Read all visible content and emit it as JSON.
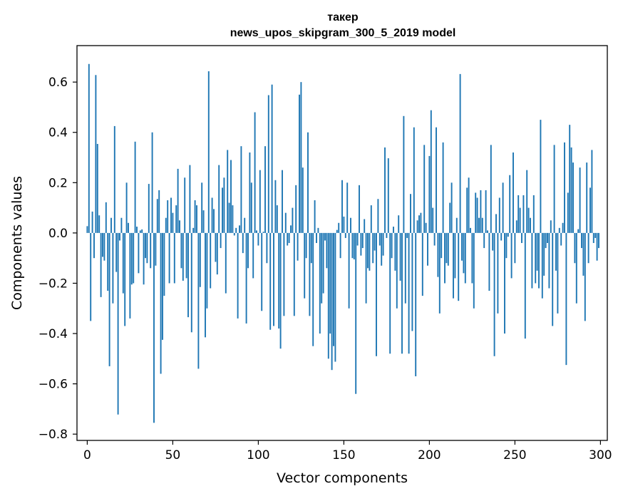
{
  "chart_data": {
    "type": "bar",
    "title": "такер",
    "subtitle": "news_upos_skipgram_300_5_2019 model",
    "xlabel": "Vector components",
    "ylabel": "Components values",
    "xlim": [
      -6,
      304
    ],
    "ylim": [
      -0.825,
      0.745
    ],
    "x_ticks": [
      0,
      50,
      100,
      150,
      200,
      250,
      300
    ],
    "x_tick_labels": [
      "0",
      "50",
      "100",
      "150",
      "200",
      "250",
      "300"
    ],
    "y_ticks": [
      -0.8,
      -0.6,
      -0.4,
      -0.2,
      0.0,
      0.2,
      0.4,
      0.6
    ],
    "y_tick_labels": [
      "−0.8",
      "−0.6",
      "−0.4",
      "−0.2",
      "0.0",
      "0.2",
      "0.4",
      "0.6"
    ],
    "bar_color": "#1f77b4",
    "grid": false,
    "x": "0..299",
    "values": [
      0.027,
      0.672,
      -0.35,
      0.085,
      -0.1,
      0.628,
      0.354,
      0.07,
      -0.255,
      -0.095,
      -0.11,
      0.122,
      -0.23,
      -0.53,
      0.06,
      -0.28,
      0.425,
      -0.155,
      -0.722,
      -0.03,
      0.06,
      -0.24,
      -0.37,
      0.2,
      0.04,
      -0.34,
      -0.205,
      -0.2,
      0.363,
      0.025,
      -0.16,
      0.01,
      0.014,
      -0.205,
      -0.1,
      -0.12,
      0.195,
      -0.14,
      0.4,
      -0.755,
      -0.13,
      0.135,
      0.17,
      -0.56,
      -0.425,
      -0.25,
      0.06,
      0.13,
      -0.2,
      0.14,
      0.08,
      -0.2,
      0.11,
      0.255,
      0.05,
      -0.14,
      -0.19,
      0.22,
      -0.18,
      -0.335,
      0.27,
      -0.395,
      0.02,
      0.13,
      0.11,
      -0.54,
      -0.215,
      0.2,
      0.09,
      -0.415,
      -0.3,
      0.643,
      -0.22,
      0.14,
      0.095,
      -0.115,
      -0.165,
      0.27,
      -0.06,
      0.18,
      0.22,
      -0.24,
      0.33,
      0.12,
      0.29,
      0.11,
      -0.01,
      0.02,
      -0.34,
      0.03,
      0.345,
      -0.08,
      0.06,
      -0.36,
      -0.14,
      0.32,
      0.2,
      -0.18,
      0.48,
      0.01,
      -0.05,
      0.25,
      -0.31,
      0.005,
      0.345,
      -0.12,
      0.548,
      -0.385,
      0.59,
      -0.37,
      0.21,
      0.11,
      -0.38,
      -0.46,
      0.25,
      -0.33,
      0.08,
      -0.05,
      -0.04,
      0.03,
      0.1,
      -0.33,
      0.19,
      -0.11,
      0.55,
      0.6,
      0.26,
      -0.26,
      -0.1,
      0.4,
      -0.33,
      -0.12,
      -0.45,
      0.13,
      -0.04,
      0.02,
      -0.4,
      -0.28,
      -0.24,
      -0.03,
      -0.14,
      -0.5,
      -0.4,
      -0.545,
      -0.45,
      -0.512,
      0.012,
      0.04,
      -0.1,
      0.21,
      0.065,
      -0.02,
      0.2,
      -0.3,
      0.06,
      -0.1,
      -0.105,
      -0.64,
      -0.05,
      0.19,
      -0.09,
      -0.06,
      0.055,
      -0.28,
      -0.14,
      -0.15,
      0.11,
      -0.12,
      -0.07,
      -0.49,
      0.135,
      -0.05,
      -0.13,
      -0.09,
      0.34,
      -0.02,
      0.297,
      -0.48,
      -0.1,
      0.025,
      -0.15,
      -0.3,
      0.07,
      -0.19,
      -0.48,
      0.465,
      -0.28,
      -0.02,
      -0.48,
      0.155,
      -0.39,
      0.42,
      -0.57,
      0.05,
      0.07,
      0.08,
      -0.25,
      0.35,
      0.04,
      -0.13,
      0.306,
      0.488,
      0.1,
      -0.05,
      0.42,
      -0.175,
      -0.32,
      -0.1,
      0.36,
      -0.2,
      -0.12,
      -0.13,
      0.12,
      0.2,
      -0.26,
      -0.18,
      0.06,
      -0.27,
      0.632,
      -0.11,
      -0.16,
      -0.2,
      0.18,
      0.22,
      0.02,
      -0.2,
      -0.3,
      0.16,
      0.14,
      0.06,
      0.17,
      0.06,
      -0.06,
      0.17,
      0.01,
      -0.23,
      0.35,
      -0.07,
      -0.49,
      0.075,
      -0.32,
      0.14,
      -0.03,
      0.2,
      -0.4,
      -0.1,
      -0.015,
      0.23,
      -0.18,
      0.32,
      -0.12,
      0.05,
      0.15,
      0.1,
      -0.04,
      0.15,
      -0.42,
      0.25,
      0.1,
      0.06,
      -0.22,
      0.15,
      -0.2,
      -0.15,
      -0.22,
      0.45,
      -0.26,
      -0.17,
      -0.06,
      -0.04,
      -0.22,
      0.05,
      -0.37,
      0.35,
      -0.15,
      -0.32,
      0.02,
      -0.05,
      0.04,
      0.36,
      -0.525,
      0.16,
      0.43,
      0.34,
      0.28,
      -0.12,
      -0.28,
      0.015,
      0.26,
      -0.06,
      -0.17,
      -0.35,
      0.28,
      -0.12,
      0.18,
      0.33,
      -0.04,
      -0.02,
      -0.11,
      -0.06
    ]
  }
}
